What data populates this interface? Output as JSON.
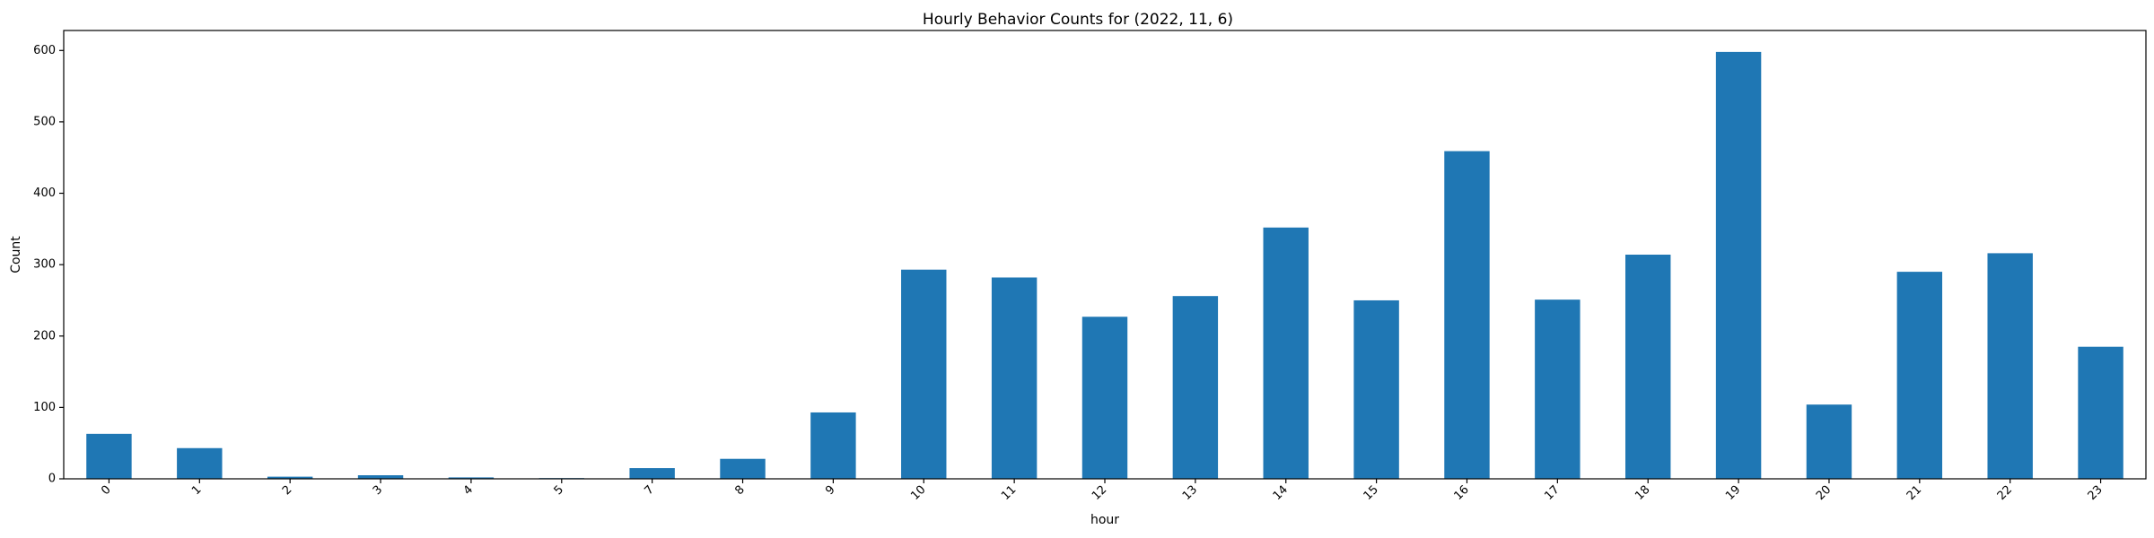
{
  "chart_data": {
    "type": "bar",
    "title": "Hourly Behavior Counts for (2022, 11, 6)",
    "xlabel": "hour",
    "ylabel": "Count",
    "categories": [
      "0",
      "1",
      "2",
      "3",
      "4",
      "5",
      "7",
      "8",
      "9",
      "10",
      "11",
      "12",
      "13",
      "14",
      "15",
      "16",
      "17",
      "18",
      "19",
      "20",
      "21",
      "22",
      "23"
    ],
    "values": [
      63,
      43,
      3,
      5,
      2,
      1,
      15,
      28,
      93,
      293,
      282,
      227,
      256,
      352,
      250,
      459,
      251,
      314,
      598,
      104,
      290,
      316,
      185
    ],
    "ylim": [
      0,
      628
    ],
    "yticks": [
      0,
      100,
      200,
      300,
      400,
      500,
      600
    ],
    "grid": false,
    "bar_color": "#1f77b4",
    "legend": "none"
  }
}
